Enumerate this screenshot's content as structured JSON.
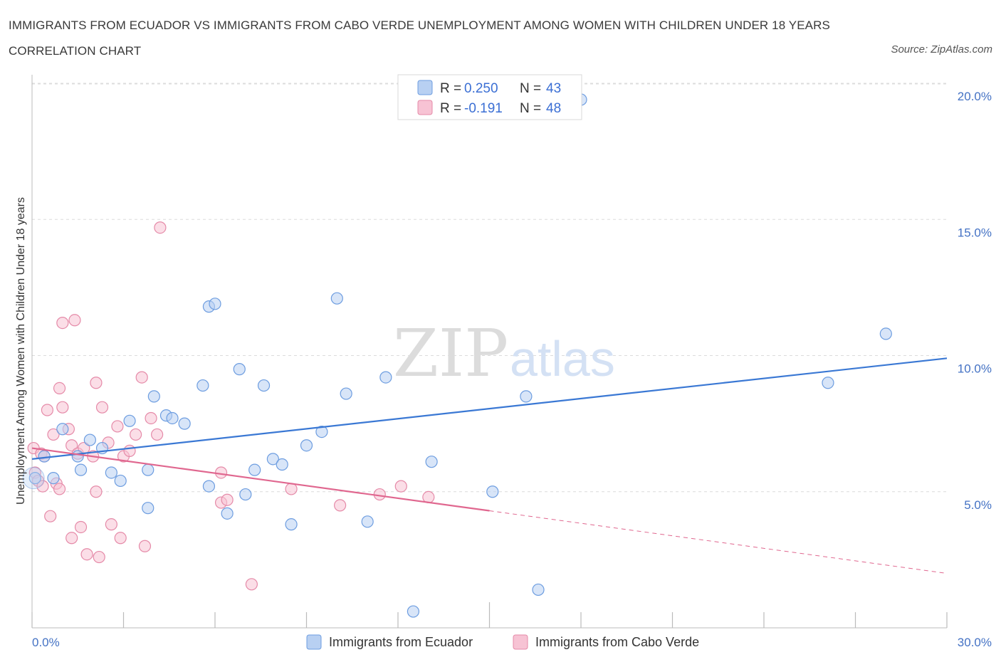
{
  "title": "IMMIGRANTS FROM ECUADOR VS IMMIGRANTS FROM CABO VERDE UNEMPLOYMENT AMONG WOMEN WITH CHILDREN UNDER 18 YEARS CORRELATION CHART",
  "source": "Source: ZipAtlas.com",
  "watermark": {
    "zip": "ZIP",
    "atlas": "atlas"
  },
  "legend_top": {
    "r_label": "R =",
    "n_label": "N =",
    "rows": [
      {
        "r": "0.250",
        "n": "43"
      },
      {
        "r": "-0.191",
        "n": "48"
      }
    ]
  },
  "colors": {
    "ecuador_fill": "#b8d0f2",
    "ecuador_stroke": "#6d9de0",
    "ecuador_line": "#3a78d4",
    "caboverde_fill": "#f7c3d4",
    "caboverde_stroke": "#e58aa8",
    "caboverde_line": "#e0678f",
    "tick_label": "#4472c4",
    "grid": "#dcdcdc"
  },
  "chart_data": {
    "type": "scatter",
    "title": "IMMIGRANTS FROM ECUADOR VS IMMIGRANTS FROM CABO VERDE UNEMPLOYMENT AMONG WOMEN WITH CHILDREN UNDER 18 YEARS CORRELATION CHART",
    "xlabel": "",
    "ylabel": "Unemployment Among Women with Children Under 18 years",
    "xlim": [
      0,
      30
    ],
    "ylim": [
      0,
      20.5
    ],
    "x_tick_labels": [
      "0.0%",
      "30.0%"
    ],
    "y_ticks": [
      5,
      10,
      15,
      20
    ],
    "y_tick_labels": [
      "5.0%",
      "10.0%",
      "15.0%",
      "20.0%"
    ],
    "grid": true,
    "legend_position": "top-center",
    "series": [
      {
        "name": "Immigrants from Ecuador",
        "r": 0.25,
        "n": 43,
        "trend": {
          "x": [
            0,
            30
          ],
          "y": [
            6.2,
            9.9
          ],
          "dashed_from": null
        },
        "points": [
          [
            0.1,
            5.5
          ],
          [
            0.4,
            6.3
          ],
          [
            0.7,
            5.5
          ],
          [
            1.0,
            7.3
          ],
          [
            1.5,
            6.3
          ],
          [
            1.6,
            5.8
          ],
          [
            1.9,
            6.9
          ],
          [
            2.3,
            6.6
          ],
          [
            2.6,
            5.7
          ],
          [
            2.9,
            5.4
          ],
          [
            3.2,
            7.6
          ],
          [
            3.8,
            4.4
          ],
          [
            3.8,
            5.8
          ],
          [
            4.0,
            8.5
          ],
          [
            4.4,
            7.8
          ],
          [
            4.6,
            7.7
          ],
          [
            5.0,
            7.5
          ],
          [
            5.6,
            8.9
          ],
          [
            5.8,
            11.8
          ],
          [
            5.8,
            5.2
          ],
          [
            6.0,
            11.9
          ],
          [
            6.4,
            4.2
          ],
          [
            6.8,
            9.5
          ],
          [
            7.0,
            4.9
          ],
          [
            7.3,
            5.8
          ],
          [
            7.6,
            8.9
          ],
          [
            7.9,
            6.2
          ],
          [
            8.2,
            6.0
          ],
          [
            8.5,
            3.8
          ],
          [
            9.0,
            6.7
          ],
          [
            9.5,
            7.2
          ],
          [
            10.0,
            12.1
          ],
          [
            10.3,
            8.6
          ],
          [
            11.0,
            3.9
          ],
          [
            11.6,
            9.2
          ],
          [
            12.5,
            0.6
          ],
          [
            13.1,
            6.1
          ],
          [
            15.1,
            5.0
          ],
          [
            16.2,
            8.5
          ],
          [
            16.6,
            1.4
          ],
          [
            18.0,
            19.4
          ],
          [
            26.1,
            9.0
          ],
          [
            28.0,
            10.8
          ]
        ]
      },
      {
        "name": "Immigrants from Cabo Verde",
        "r": -0.191,
        "n": 48,
        "trend": {
          "x": [
            0,
            30
          ],
          "y": [
            6.6,
            2.0
          ],
          "dashed_from": 15.0
        },
        "points": [
          [
            0.05,
            6.6
          ],
          [
            0.1,
            5.7
          ],
          [
            0.2,
            5.4
          ],
          [
            0.3,
            6.4
          ],
          [
            0.35,
            5.2
          ],
          [
            0.4,
            6.3
          ],
          [
            0.5,
            8.0
          ],
          [
            0.6,
            4.1
          ],
          [
            0.7,
            7.1
          ],
          [
            0.8,
            5.3
          ],
          [
            0.9,
            8.8
          ],
          [
            0.9,
            5.1
          ],
          [
            1.0,
            11.2
          ],
          [
            1.0,
            8.1
          ],
          [
            1.2,
            7.3
          ],
          [
            1.3,
            6.7
          ],
          [
            1.3,
            3.3
          ],
          [
            1.4,
            11.3
          ],
          [
            1.5,
            6.4
          ],
          [
            1.6,
            3.7
          ],
          [
            1.7,
            6.6
          ],
          [
            1.8,
            2.7
          ],
          [
            2.0,
            6.3
          ],
          [
            2.1,
            5.0
          ],
          [
            2.1,
            9.0
          ],
          [
            2.2,
            2.6
          ],
          [
            2.3,
            8.1
          ],
          [
            2.5,
            6.8
          ],
          [
            2.6,
            3.8
          ],
          [
            2.8,
            7.4
          ],
          [
            2.9,
            3.3
          ],
          [
            3.0,
            6.3
          ],
          [
            3.2,
            6.5
          ],
          [
            3.4,
            7.1
          ],
          [
            3.6,
            9.2
          ],
          [
            3.7,
            3.0
          ],
          [
            3.9,
            7.7
          ],
          [
            4.1,
            7.1
          ],
          [
            4.2,
            14.7
          ],
          [
            6.2,
            5.7
          ],
          [
            6.2,
            4.6
          ],
          [
            6.4,
            4.7
          ],
          [
            7.2,
            1.6
          ],
          [
            8.5,
            5.1
          ],
          [
            10.1,
            4.5
          ],
          [
            11.4,
            4.9
          ],
          [
            12.1,
            5.2
          ],
          [
            13.0,
            4.8
          ]
        ]
      }
    ]
  },
  "legend_bottom": [
    "Immigrants from Ecuador",
    "Immigrants from Cabo Verde"
  ]
}
